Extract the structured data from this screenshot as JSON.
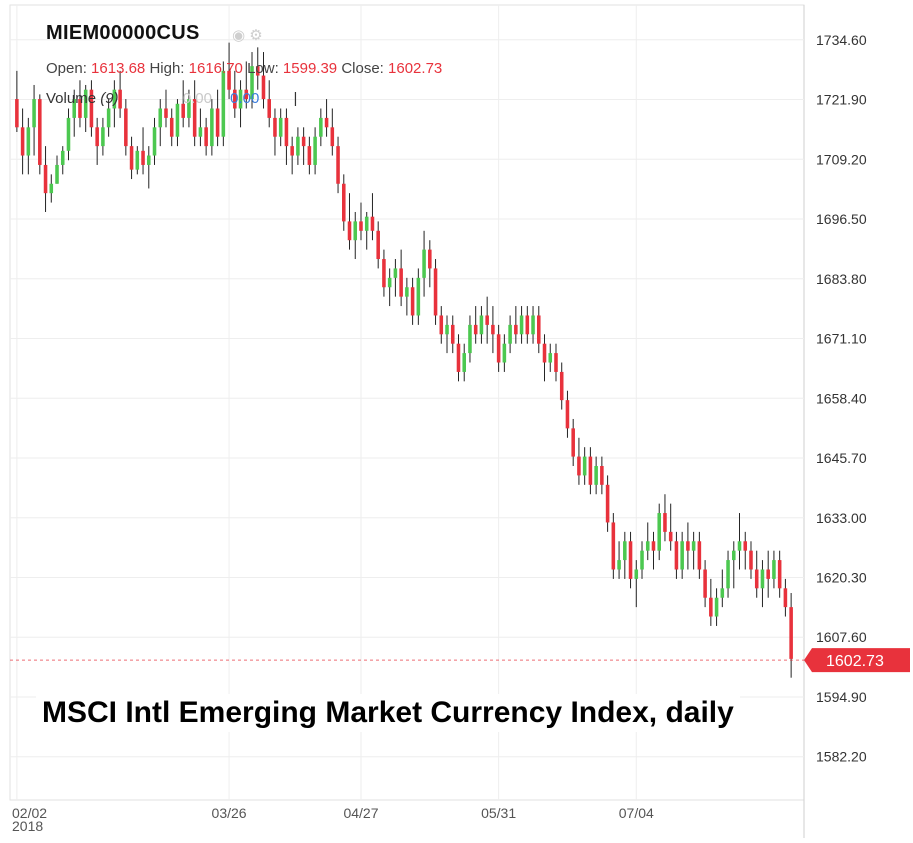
{
  "header": {
    "ticker": "MIEM00000CUS",
    "open_label": "Open:",
    "open_value": "1613.68",
    "high_label": "High:",
    "high_value": "1616.70",
    "low_label": "Low:",
    "low_value": "1599.39",
    "close_label": "Close:",
    "close_value": "1602.73",
    "volume_label": "Volume",
    "volume_period": "(9)",
    "volume_value_faded": "0.00",
    "volume_value": "0.00",
    "icons": [
      "eye-icon",
      "gear-icon"
    ]
  },
  "caption": "MSCI Intl Emerging Market Currency Index, daily",
  "year_label": "2018",
  "colors": {
    "up": "#4cc850",
    "down": "#e8323c",
    "grid": "#eeeeee",
    "last_price": "#e8323c",
    "axis_text": "#333333"
  },
  "chart_data": {
    "type": "candlestick",
    "title": "MSCI Intl Emerging Market Currency Index, daily",
    "y_ticks": [
      "1734.60",
      "1721.90",
      "1709.20",
      "1696.50",
      "1683.80",
      "1671.10",
      "1658.40",
      "1645.70",
      "1633.00",
      "1620.30",
      "1607.60",
      "1594.90",
      "1582.20"
    ],
    "y_range": [
      1573,
      1742
    ],
    "x_ticks": [
      {
        "label": "02/02",
        "index": 0
      },
      {
        "label": "03/26",
        "index": 37
      },
      {
        "label": "04/27",
        "index": 60
      },
      {
        "label": "05/31",
        "index": 84
      },
      {
        "label": "07/04",
        "index": 108
      }
    ],
    "last_price": "1602.73",
    "grid": true,
    "candles": [
      [
        1722,
        1728,
        1715,
        1716
      ],
      [
        1716,
        1720,
        1706,
        1710
      ],
      [
        1710,
        1718,
        1706,
        1716
      ],
      [
        1716,
        1725,
        1710,
        1722
      ],
      [
        1722,
        1723,
        1706,
        1708
      ],
      [
        1708,
        1712,
        1698,
        1702
      ],
      [
        1702,
        1706,
        1700,
        1704
      ],
      [
        1704,
        1710,
        1704,
        1708
      ],
      [
        1708,
        1712,
        1706,
        1711
      ],
      [
        1711,
        1720,
        1709,
        1718
      ],
      [
        1718,
        1724,
        1714,
        1722
      ],
      [
        1722,
        1726,
        1716,
        1718
      ],
      [
        1718,
        1725,
        1715,
        1724
      ],
      [
        1724,
        1726,
        1714,
        1716
      ],
      [
        1716,
        1718,
        1708,
        1712
      ],
      [
        1712,
        1718,
        1710,
        1716
      ],
      [
        1716,
        1722,
        1714,
        1720
      ],
      [
        1720,
        1726,
        1716,
        1724
      ],
      [
        1724,
        1728,
        1718,
        1720
      ],
      [
        1720,
        1722,
        1710,
        1712
      ],
      [
        1712,
        1714,
        1705,
        1707
      ],
      [
        1707,
        1712,
        1706,
        1711
      ],
      [
        1711,
        1716,
        1706,
        1708
      ],
      [
        1708,
        1712,
        1703,
        1710
      ],
      [
        1710,
        1718,
        1708,
        1716
      ],
      [
        1716,
        1722,
        1712,
        1720
      ],
      [
        1720,
        1724,
        1716,
        1718
      ],
      [
        1718,
        1720,
        1712,
        1714
      ],
      [
        1714,
        1722,
        1712,
        1721
      ],
      [
        1721,
        1726,
        1716,
        1718
      ],
      [
        1718,
        1724,
        1716,
        1722
      ],
      [
        1722,
        1726,
        1712,
        1714
      ],
      [
        1714,
        1720,
        1712,
        1716
      ],
      [
        1716,
        1718,
        1710,
        1712
      ],
      [
        1712,
        1722,
        1710,
        1720
      ],
      [
        1720,
        1724,
        1712,
        1714
      ],
      [
        1714,
        1730,
        1712,
        1728
      ],
      [
        1728,
        1734,
        1722,
        1724
      ],
      [
        1724,
        1728,
        1718,
        1720
      ],
      [
        1720,
        1726,
        1716,
        1724
      ],
      [
        1724,
        1730,
        1720,
        1722
      ],
      [
        1722,
        1732,
        1720,
        1729
      ],
      [
        1729,
        1733,
        1724,
        1727
      ],
      [
        1727,
        1732,
        1720,
        1722
      ],
      [
        1722,
        1726,
        1716,
        1718
      ],
      [
        1718,
        1720,
        1710,
        1714
      ],
      [
        1714,
        1720,
        1712,
        1718
      ],
      [
        1718,
        1720,
        1708,
        1712
      ],
      [
        1712,
        1714,
        1706,
        1710
      ],
      [
        1710,
        1716,
        1708,
        1714
      ],
      [
        1714,
        1716,
        1708,
        1712
      ],
      [
        1712,
        1714,
        1706,
        1708
      ],
      [
        1708,
        1716,
        1706,
        1714
      ],
      [
        1714,
        1720,
        1712,
        1718
      ],
      [
        1718,
        1722,
        1714,
        1716
      ],
      [
        1716,
        1720,
        1710,
        1712
      ],
      [
        1712,
        1714,
        1702,
        1704
      ],
      [
        1704,
        1706,
        1694,
        1696
      ],
      [
        1696,
        1702,
        1690,
        1692
      ],
      [
        1692,
        1698,
        1688,
        1696
      ],
      [
        1696,
        1700,
        1692,
        1694
      ],
      [
        1694,
        1698,
        1690,
        1697
      ],
      [
        1697,
        1702,
        1692,
        1694
      ],
      [
        1694,
        1696,
        1686,
        1688
      ],
      [
        1688,
        1690,
        1680,
        1682
      ],
      [
        1682,
        1686,
        1678,
        1684
      ],
      [
        1684,
        1688,
        1680,
        1686
      ],
      [
        1686,
        1690,
        1678,
        1680
      ],
      [
        1680,
        1684,
        1676,
        1682
      ],
      [
        1682,
        1684,
        1674,
        1676
      ],
      [
        1676,
        1686,
        1674,
        1684
      ],
      [
        1684,
        1694,
        1680,
        1690
      ],
      [
        1690,
        1692,
        1682,
        1686
      ],
      [
        1686,
        1688,
        1674,
        1676
      ],
      [
        1676,
        1678,
        1670,
        1672
      ],
      [
        1672,
        1676,
        1668,
        1674
      ],
      [
        1674,
        1676,
        1668,
        1670
      ],
      [
        1670,
        1672,
        1662,
        1664
      ],
      [
        1664,
        1670,
        1662,
        1668
      ],
      [
        1668,
        1676,
        1666,
        1674
      ],
      [
        1674,
        1678,
        1670,
        1672
      ],
      [
        1672,
        1678,
        1670,
        1676
      ],
      [
        1676,
        1680,
        1670,
        1674
      ],
      [
        1674,
        1678,
        1668,
        1672
      ],
      [
        1672,
        1674,
        1664,
        1666
      ],
      [
        1666,
        1672,
        1664,
        1670
      ],
      [
        1670,
        1676,
        1668,
        1674
      ],
      [
        1674,
        1678,
        1670,
        1672
      ],
      [
        1672,
        1678,
        1670,
        1676
      ],
      [
        1676,
        1678,
        1670,
        1672
      ],
      [
        1672,
        1678,
        1670,
        1676
      ],
      [
        1676,
        1678,
        1668,
        1670
      ],
      [
        1670,
        1672,
        1662,
        1666
      ],
      [
        1666,
        1670,
        1664,
        1668
      ],
      [
        1668,
        1670,
        1662,
        1664
      ],
      [
        1664,
        1666,
        1656,
        1658
      ],
      [
        1658,
        1660,
        1650,
        1652
      ],
      [
        1652,
        1654,
        1644,
        1646
      ],
      [
        1646,
        1650,
        1640,
        1642
      ],
      [
        1642,
        1648,
        1640,
        1646
      ],
      [
        1646,
        1648,
        1638,
        1640
      ],
      [
        1640,
        1646,
        1638,
        1644
      ],
      [
        1644,
        1646,
        1638,
        1640
      ],
      [
        1640,
        1642,
        1630,
        1632
      ],
      [
        1632,
        1634,
        1620,
        1622
      ],
      [
        1622,
        1628,
        1620,
        1624
      ],
      [
        1624,
        1630,
        1620,
        1628
      ],
      [
        1628,
        1630,
        1618,
        1620
      ],
      [
        1620,
        1624,
        1614,
        1622
      ],
      [
        1622,
        1628,
        1620,
        1626
      ],
      [
        1626,
        1632,
        1624,
        1628
      ],
      [
        1628,
        1630,
        1622,
        1626
      ],
      [
        1626,
        1636,
        1624,
        1634
      ],
      [
        1634,
        1638,
        1628,
        1630
      ],
      [
        1630,
        1636,
        1626,
        1628
      ],
      [
        1628,
        1630,
        1620,
        1622
      ],
      [
        1622,
        1630,
        1620,
        1628
      ],
      [
        1628,
        1632,
        1622,
        1626
      ],
      [
        1626,
        1630,
        1622,
        1628
      ],
      [
        1628,
        1630,
        1620,
        1622
      ],
      [
        1622,
        1624,
        1614,
        1616
      ],
      [
        1616,
        1620,
        1610,
        1612
      ],
      [
        1612,
        1618,
        1610,
        1616
      ],
      [
        1616,
        1622,
        1614,
        1618
      ],
      [
        1618,
        1626,
        1616,
        1624
      ],
      [
        1624,
        1628,
        1618,
        1626
      ],
      [
        1626,
        1634,
        1622,
        1628
      ],
      [
        1628,
        1630,
        1622,
        1626
      ],
      [
        1626,
        1628,
        1620,
        1622
      ],
      [
        1622,
        1626,
        1616,
        1618
      ],
      [
        1618,
        1624,
        1614,
        1622
      ],
      [
        1622,
        1626,
        1616,
        1620
      ],
      [
        1620,
        1626,
        1618,
        1624
      ],
      [
        1624,
        1626,
        1616,
        1618
      ],
      [
        1618,
        1620,
        1612,
        1614
      ],
      [
        1614,
        1617,
        1599,
        1603
      ]
    ]
  }
}
